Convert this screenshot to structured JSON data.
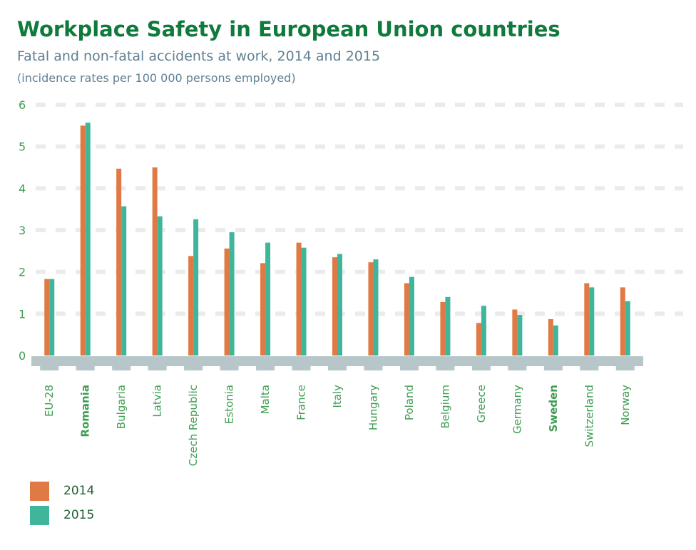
{
  "title": "Workplace Safety in European Union countries",
  "subtitle": "Fatal and non-fatal accidents at work, 2014 and 2015",
  "note": "(incidence rates per 100 000 persons employed)",
  "colors": {
    "s2014": "#e07a45",
    "s2015": "#3fb59b",
    "grid": "#ebebeb",
    "axis_band": "#b7c7c9",
    "text_green": "#3f9d52",
    "title_green": "#0f7a3c"
  },
  "chart_data": {
    "type": "bar",
    "title": "Workplace Safety in European Union countries",
    "subtitle": "Fatal and non-fatal accidents at work, 2014 and 2015",
    "ylabel": "",
    "xlabel": "",
    "ylim": [
      0,
      6
    ],
    "yticks": [
      0,
      1,
      2,
      3,
      4,
      5,
      6
    ],
    "grid": true,
    "legend_position": "bottom-left",
    "categories": [
      "EU-28",
      "Romania",
      "Bulgaria",
      "Latvia",
      "Czech Republic",
      "Estonia",
      "Malta",
      "France",
      "Italy",
      "Hungary",
      "Poland",
      "Belgium",
      "Greece",
      "Germany",
      "Sweden",
      "Switzerland",
      "Norway"
    ],
    "highlighted_categories": [
      "Romania",
      "Sweden"
    ],
    "series": [
      {
        "name": "2014",
        "color": "#e07a45",
        "values": [
          1.83,
          5.5,
          4.47,
          4.5,
          2.38,
          2.56,
          2.21,
          2.7,
          2.35,
          2.23,
          1.73,
          1.28,
          0.78,
          1.1,
          0.87,
          1.73,
          1.63
        ]
      },
      {
        "name": "2015",
        "color": "#3fb59b",
        "values": [
          1.83,
          5.57,
          3.57,
          3.33,
          3.26,
          2.95,
          2.7,
          2.58,
          2.43,
          2.3,
          1.88,
          1.4,
          1.19,
          0.97,
          0.72,
          1.63,
          1.3
        ]
      }
    ]
  }
}
